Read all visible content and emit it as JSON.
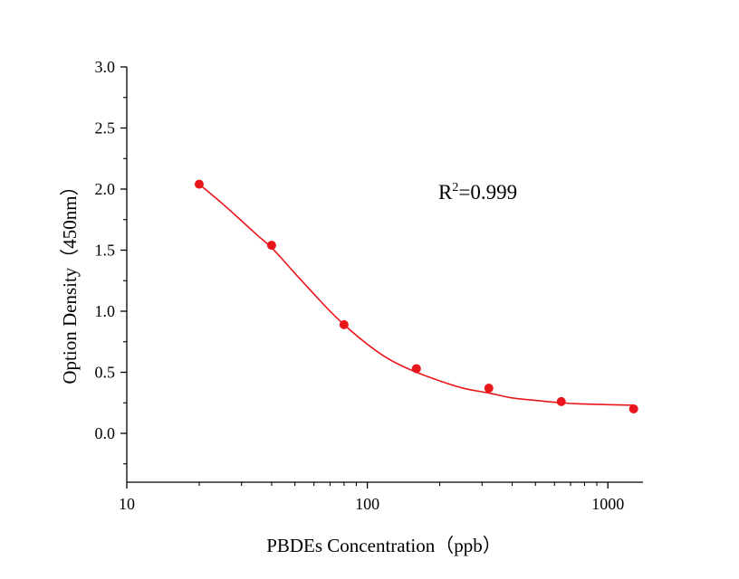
{
  "chart_data": {
    "type": "scatter",
    "xlabel": "PBDEs Concentration（ppb）",
    "ylabel": "Option Density（450nm）",
    "x_scale": "log",
    "xlim": [
      10,
      1400
    ],
    "ylim": [
      -0.4,
      3.0
    ],
    "x_ticks": [
      10,
      100,
      1000
    ],
    "x_tick_labels": [
      "10",
      "100",
      "1000"
    ],
    "y_ticks": [
      0.0,
      0.5,
      1.0,
      1.5,
      2.0,
      2.5,
      3.0
    ],
    "y_tick_labels": [
      "0.0",
      "0.5",
      "1.0",
      "1.5",
      "2.0",
      "2.5",
      "3.0"
    ],
    "grid": false,
    "points": {
      "x": [
        20,
        40,
        80,
        160,
        320,
        640,
        1280
      ],
      "y": [
        2.04,
        1.54,
        0.89,
        0.53,
        0.37,
        0.26,
        0.2
      ]
    },
    "fit_curve": {
      "x": [
        20,
        25,
        30,
        35,
        40,
        50,
        60,
        70,
        80,
        100,
        120,
        140,
        160,
        200,
        250,
        320,
        400,
        500,
        640,
        800,
        1000,
        1280
      ],
      "y": [
        2.04,
        1.88,
        1.74,
        1.62,
        1.52,
        1.31,
        1.14,
        1.0,
        0.89,
        0.73,
        0.62,
        0.55,
        0.5,
        0.43,
        0.37,
        0.33,
        0.29,
        0.27,
        0.25,
        0.24,
        0.235,
        0.23
      ]
    },
    "annotation": {
      "base": "R",
      "superscript": "2",
      "rest": "=0.999"
    },
    "colors": {
      "series": "#e8161b",
      "axis": "#000000"
    }
  }
}
